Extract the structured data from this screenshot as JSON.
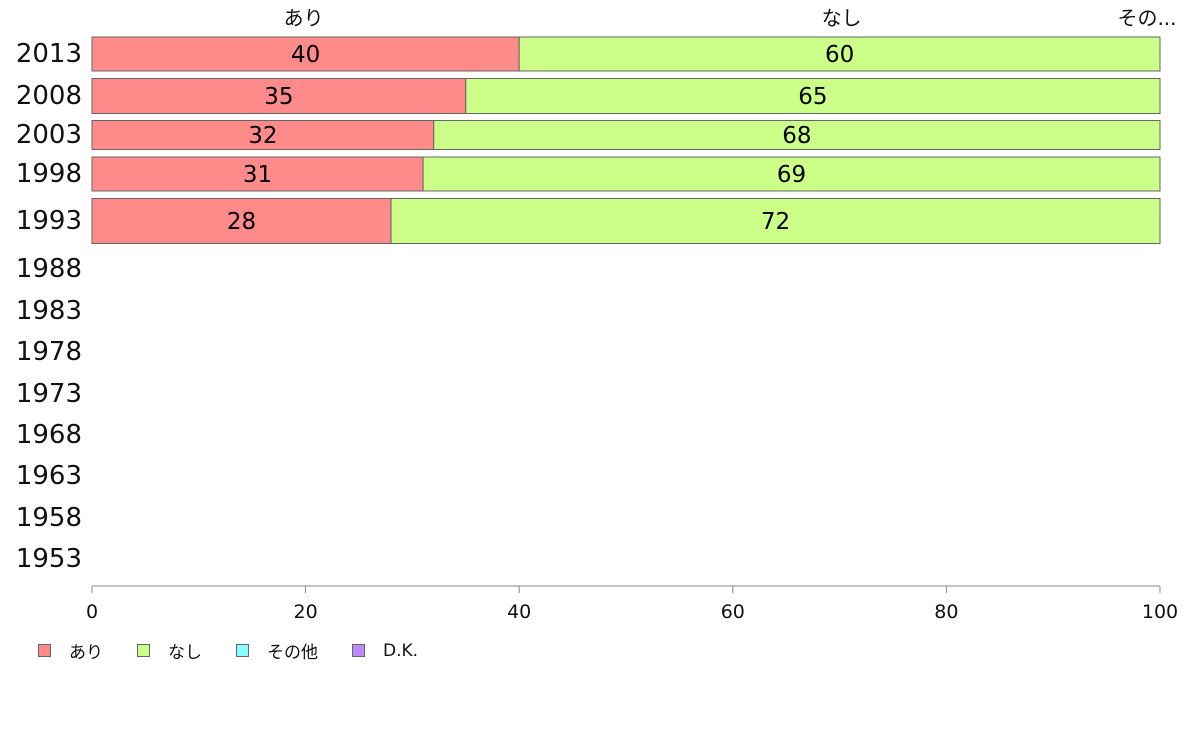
{
  "chart_data": {
    "type": "bar",
    "orientation": "horizontal",
    "stacked": true,
    "categories": [
      "2013",
      "2008",
      "2003",
      "1998",
      "1993",
      "1988",
      "1983",
      "1978",
      "1973",
      "1968",
      "1963",
      "1958",
      "1953"
    ],
    "series": [
      {
        "name": "あり",
        "color": "#ff8a8a",
        "values": [
          40,
          35,
          32,
          31,
          28,
          null,
          null,
          null,
          null,
          null,
          null,
          null,
          null
        ]
      },
      {
        "name": "なし",
        "color": "#ccff88",
        "values": [
          60,
          65,
          68,
          69,
          72,
          null,
          null,
          null,
          null,
          null,
          null,
          null,
          null
        ]
      },
      {
        "name": "その他",
        "color": "#88ffff",
        "values": [
          0,
          0,
          0,
          0,
          0,
          null,
          null,
          null,
          null,
          null,
          null,
          null,
          null
        ]
      },
      {
        "name": "D.K.",
        "color": "#bb88ff",
        "values": [
          0,
          0,
          0,
          0,
          0,
          null,
          null,
          null,
          null,
          null,
          null,
          null,
          null
        ]
      }
    ],
    "xlim": [
      0,
      100
    ],
    "xticks": [
      "0",
      "20",
      "40",
      "60",
      "80",
      "100"
    ],
    "top_labels": [
      "あり",
      "なし",
      "その..."
    ],
    "grid": false,
    "legend_position": "bottom-left"
  }
}
